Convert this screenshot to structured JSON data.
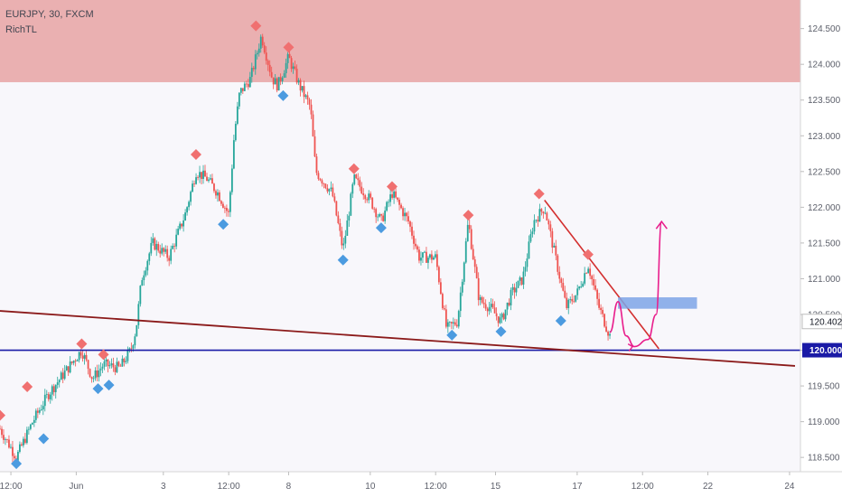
{
  "header": {
    "symbol_line": "EURJPY, 30, FXCM",
    "indicator": "RichTL"
  },
  "colors": {
    "up": "#26a69a",
    "down": "#ef5350",
    "resistance_zone": "#e8a3a3",
    "support_line": "#1a1aa6",
    "trendline": "#8b1a1a",
    "descending_line": "#d32f2f",
    "projection": "#e91e8c",
    "target_box": "#7ea4e6",
    "pivot_high": "#f07070",
    "pivot_low": "#4c9be0"
  },
  "chart_data": {
    "type": "candlestick",
    "title": "EURJPY, 30, FXCM",
    "indicator": "RichTL",
    "y_axis": {
      "ticks": [
        "124.500",
        "124.000",
        "123.500",
        "123.000",
        "122.500",
        "122.000",
        "121.500",
        "121.000",
        "120.500",
        "120.000",
        "119.500",
        "119.000",
        "118.500"
      ],
      "ylim": [
        118.3,
        124.9
      ],
      "current_price": "120.402",
      "level_label": "120.000"
    },
    "x_axis": {
      "ticks": [
        "12:00",
        "Jun",
        "3",
        "12:00",
        "8",
        "10",
        "12:00",
        "15",
        "17",
        "12:00",
        "22",
        "24"
      ],
      "tick_index": [
        2,
        14,
        30,
        42,
        53,
        68,
        80,
        91,
        106,
        118,
        130,
        145
      ]
    },
    "price_path": [
      [
        0,
        118.9
      ],
      [
        3,
        118.5
      ],
      [
        6,
        119.0
      ],
      [
        9,
        119.4
      ],
      [
        12,
        119.7
      ],
      [
        15,
        120.0
      ],
      [
        17,
        119.6
      ],
      [
        19,
        119.8
      ],
      [
        22,
        119.75
      ],
      [
        24,
        120.0
      ],
      [
        25,
        120.3
      ],
      [
        26,
        121.0
      ],
      [
        28,
        121.5
      ],
      [
        31,
        121.3
      ],
      [
        34,
        121.9
      ],
      [
        36,
        122.5
      ],
      [
        38,
        122.4
      ],
      [
        40,
        122.2
      ],
      [
        42,
        121.9
      ],
      [
        43,
        123.0
      ],
      [
        44,
        123.6
      ],
      [
        46,
        123.8
      ],
      [
        48,
        124.4
      ],
      [
        50,
        123.8
      ],
      [
        51,
        123.7
      ],
      [
        53,
        124.1
      ],
      [
        55,
        123.7
      ],
      [
        57,
        123.4
      ],
      [
        58,
        122.5
      ],
      [
        61,
        122.2
      ],
      [
        63,
        121.4
      ],
      [
        65,
        122.4
      ],
      [
        68,
        122.1
      ],
      [
        70,
        121.8
      ],
      [
        72,
        122.2
      ],
      [
        75,
        121.8
      ],
      [
        77,
        121.3
      ],
      [
        80,
        121.3
      ],
      [
        82,
        120.3
      ],
      [
        84,
        120.4
      ],
      [
        86,
        121.8
      ],
      [
        88,
        120.7
      ],
      [
        90,
        120.6
      ],
      [
        92,
        120.4
      ],
      [
        94,
        120.8
      ],
      [
        96,
        121.0
      ],
      [
        98,
        121.8
      ],
      [
        100,
        122.0
      ],
      [
        102,
        121.3
      ],
      [
        104,
        120.6
      ],
      [
        106,
        120.8
      ],
      [
        108,
        121.2
      ],
      [
        110,
        120.6
      ],
      [
        112,
        120.2
      ]
    ],
    "candles_approx_count": 340,
    "resistance_zone": {
      "from": 123.75,
      "to": 124.9
    },
    "support_level": 120.0,
    "long_trendline": {
      "from": [
        0,
        120.55
      ],
      "to": [
        146,
        119.78
      ]
    },
    "descending_line": {
      "from": [
        100,
        122.1
      ],
      "to": [
        121,
        120.02
      ]
    },
    "target_box": {
      "x_from": 113.5,
      "x_to": 128,
      "y_from": 120.58,
      "y_to": 120.74
    },
    "projection_path": [
      [
        112,
        120.25
      ],
      [
        113.5,
        120.68
      ],
      [
        115,
        120.2
      ],
      [
        116.5,
        120.05
      ],
      [
        119,
        120.15
      ],
      [
        120.5,
        120.5
      ],
      [
        121.5,
        121.8
      ]
    ],
    "pivot_highs": [
      [
        0,
        119.0
      ],
      [
        5,
        119.4
      ],
      [
        15,
        120.0
      ],
      [
        19,
        119.85
      ],
      [
        36,
        122.65
      ],
      [
        47,
        124.45
      ],
      [
        53,
        124.15
      ],
      [
        65,
        122.45
      ],
      [
        72,
        122.2
      ],
      [
        86,
        121.8
      ],
      [
        99,
        122.1
      ],
      [
        108,
        121.25
      ]
    ],
    "pivot_lows": [
      [
        3,
        118.5
      ],
      [
        8,
        118.85
      ],
      [
        18,
        119.55
      ],
      [
        20,
        119.6
      ],
      [
        41,
        121.85
      ],
      [
        52,
        123.65
      ],
      [
        63,
        121.35
      ],
      [
        70,
        121.8
      ],
      [
        83,
        120.3
      ],
      [
        92,
        120.35
      ],
      [
        103,
        120.5
      ]
    ]
  }
}
